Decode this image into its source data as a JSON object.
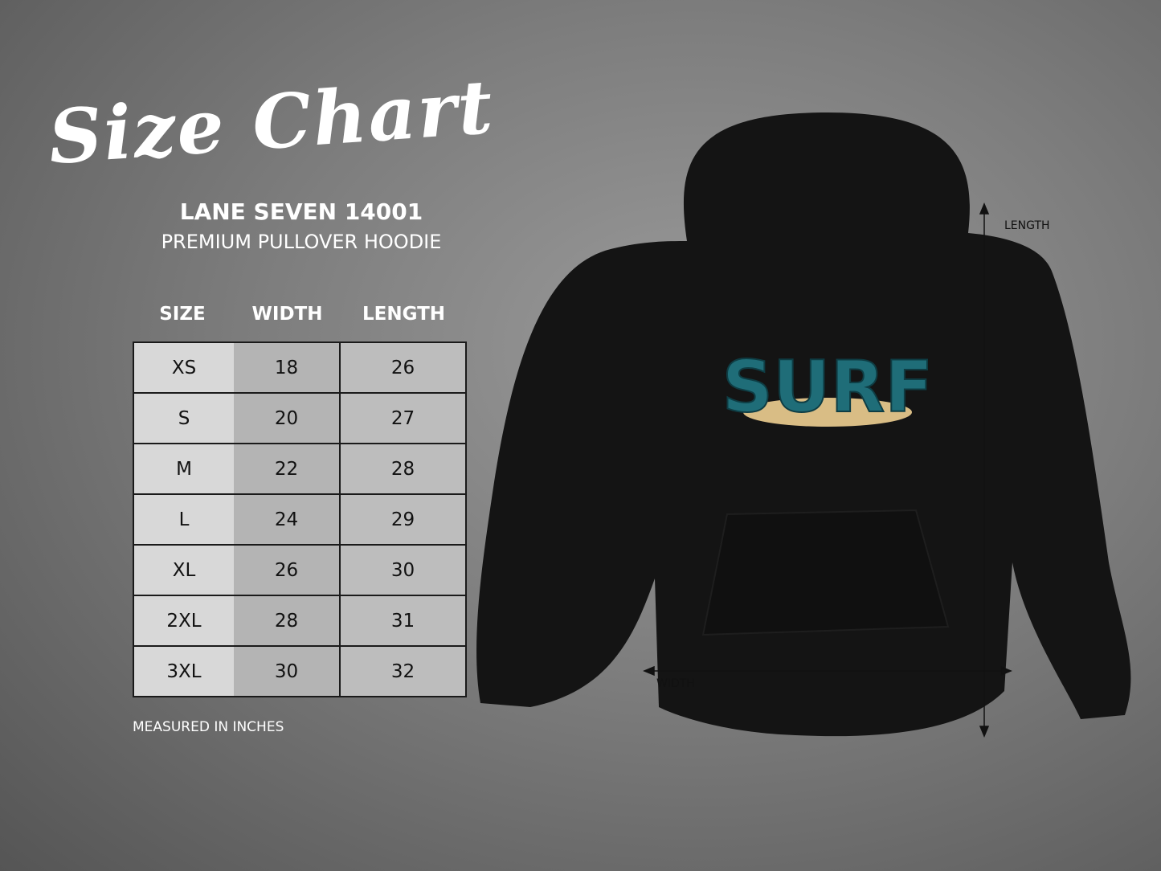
{
  "title": "Size Chart",
  "brand": "LANE SEVEN 14001",
  "product": "PREMIUM PULLOVER HOODIE",
  "table": {
    "headers": [
      "SIZE",
      "WIDTH",
      "LENGTH"
    ],
    "rows": [
      [
        "XS",
        "18",
        "26"
      ],
      [
        "S",
        "20",
        "27"
      ],
      [
        "M",
        "22",
        "28"
      ],
      [
        "L",
        "24",
        "29"
      ],
      [
        "XL",
        "26",
        "30"
      ],
      [
        "2XL",
        "28",
        "31"
      ],
      [
        "3XL",
        "30",
        "32"
      ]
    ]
  },
  "note": "MEASURED IN INCHES",
  "diagram": {
    "length_label": "LENGTH",
    "width_label": "WIDTH",
    "print_text": "SURF"
  },
  "colors": {
    "hoodie": "#111111",
    "print_teal": "#1f6d78",
    "sand": "#d9bd85"
  }
}
